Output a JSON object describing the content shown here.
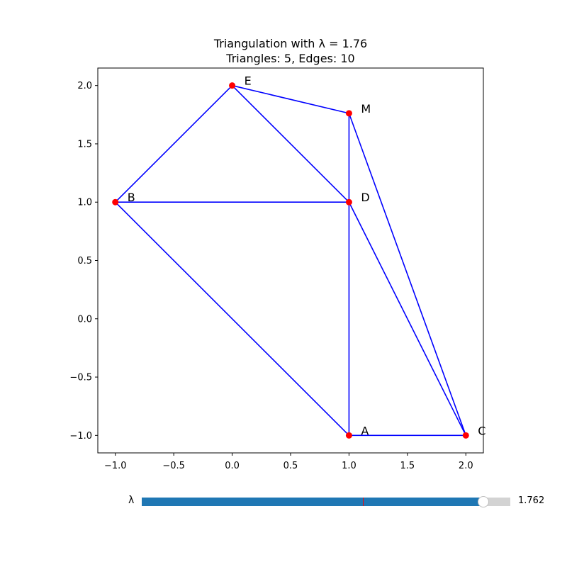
{
  "chart_data": {
    "type": "scatter",
    "title_line1": "Triangulation with λ = 1.76",
    "title_line2": "Triangles: 5, Edges: 10",
    "xlabel": "",
    "ylabel": "",
    "xlim": [
      -1.15,
      2.15
    ],
    "ylim": [
      -1.15,
      2.15
    ],
    "xticks": [
      -1.0,
      -0.5,
      0.0,
      0.5,
      1.0,
      1.5,
      2.0
    ],
    "xtick_labels": [
      "−1.0",
      "−0.5",
      "0.0",
      "0.5",
      "1.0",
      "1.5",
      "2.0"
    ],
    "yticks": [
      -1.0,
      -0.5,
      0.0,
      0.5,
      1.0,
      1.5,
      2.0
    ],
    "ytick_labels": [
      "−1.0",
      "−0.5",
      "0.0",
      "0.5",
      "1.0",
      "1.5",
      "2.0"
    ],
    "grid": false,
    "points": [
      {
        "label": "A",
        "x": 1.0,
        "y": -1.0
      },
      {
        "label": "B",
        "x": -1.0,
        "y": 1.0
      },
      {
        "label": "C",
        "x": 2.0,
        "y": -1.0
      },
      {
        "label": "D",
        "x": 1.0,
        "y": 1.0
      },
      {
        "label": "E",
        "x": 0.0,
        "y": 2.0
      },
      {
        "label": "M",
        "x": 1.0,
        "y": 1.762
      }
    ],
    "edges": [
      [
        "E",
        "B"
      ],
      [
        "E",
        "D"
      ],
      [
        "E",
        "M"
      ],
      [
        "M",
        "D"
      ],
      [
        "M",
        "C"
      ],
      [
        "B",
        "D"
      ],
      [
        "B",
        "A"
      ],
      [
        "D",
        "A"
      ],
      [
        "D",
        "C"
      ],
      [
        "A",
        "C"
      ]
    ],
    "colors": {
      "edge": "#0000ff",
      "point": "#ff0000"
    }
  },
  "slider": {
    "label": "λ",
    "value_text": "1.762",
    "value": 1.762,
    "min": 0.0,
    "max": 1.9,
    "init": 1.14,
    "colors": {
      "fill": "#1f77b4",
      "track": "#d3d3d3",
      "init_marker": "#ff0000"
    }
  }
}
